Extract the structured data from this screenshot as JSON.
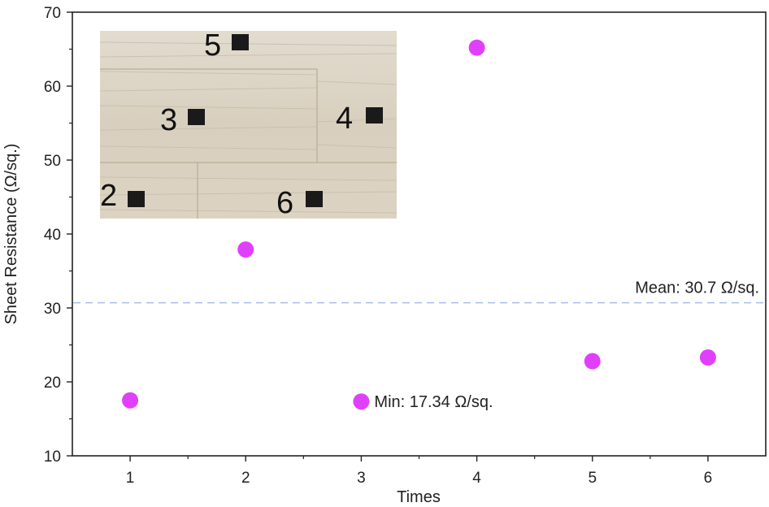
{
  "chart_data": {
    "type": "scatter",
    "xlabel": "Times",
    "ylabel": "Sheet Resistance (Ω/sq.)",
    "xlim": [
      0.5,
      6.5
    ],
    "ylim": [
      10,
      70
    ],
    "x_ticks": [
      1,
      2,
      3,
      4,
      5,
      6
    ],
    "y_ticks": [
      10,
      20,
      30,
      40,
      50,
      60,
      70
    ],
    "series": [
      {
        "x": [
          1,
          2,
          3,
          4,
          5,
          6
        ],
        "y": [
          17.5,
          37.9,
          17.34,
          65.2,
          22.8,
          23.3
        ],
        "color": "#e040fb"
      }
    ],
    "mean_line": {
      "value": 30.7,
      "label": "Mean: 30.7 Ω/sq.",
      "color": "#aabbee"
    },
    "min_annotation": {
      "x": 3,
      "y": 17.34,
      "label": "Min: 17.34 Ω/sq."
    },
    "inset_photo": {
      "description_visible": "wood sample with numbered square pads",
      "pad_labels": [
        "5",
        "3",
        "4",
        "2",
        "6"
      ]
    },
    "grid": false
  }
}
